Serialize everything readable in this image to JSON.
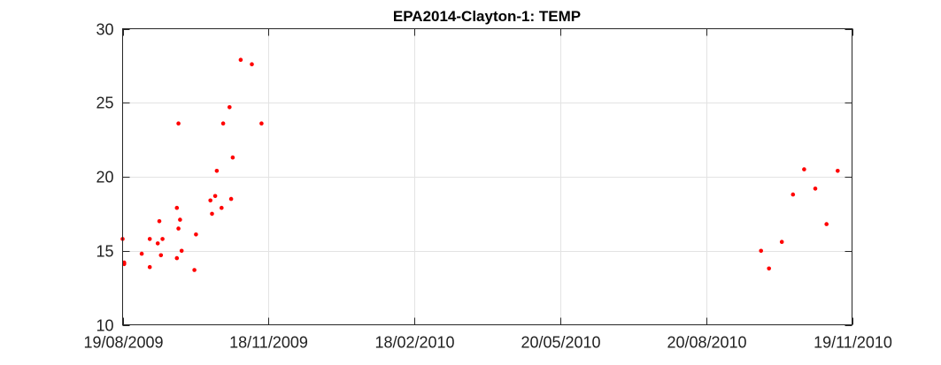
{
  "chart_data": {
    "type": "scatter",
    "title": "EPA2014-Clayton-1: TEMP",
    "xlabel": "",
    "ylabel": "",
    "x_axis_type": "date",
    "xlim": [
      "2009-08-19",
      "2010-11-19"
    ],
    "ylim": [
      10,
      30
    ],
    "x_ticks": [
      {
        "date": "2009-08-19",
        "label": "19/08/2009"
      },
      {
        "date": "2009-11-18",
        "label": "18/11/2009"
      },
      {
        "date": "2010-02-18",
        "label": "18/02/2010"
      },
      {
        "date": "2010-05-20",
        "label": "20/05/2010"
      },
      {
        "date": "2010-08-20",
        "label": "20/08/2010"
      },
      {
        "date": "2010-11-19",
        "label": "19/11/2010"
      }
    ],
    "y_ticks": [
      10,
      15,
      20,
      25,
      30
    ],
    "grid": true,
    "marker_color": "#ff0000",
    "series": [
      {
        "points": [
          {
            "x": "2009-08-19",
            "y": 15.8
          },
          {
            "x": "2009-08-20",
            "y": 14.2
          },
          {
            "x": "2009-08-20",
            "y": 14.1
          },
          {
            "x": "2009-08-31",
            "y": 14.8
          },
          {
            "x": "2009-09-05",
            "y": 15.8
          },
          {
            "x": "2009-09-05",
            "y": 13.9
          },
          {
            "x": "2009-09-10",
            "y": 15.5
          },
          {
            "x": "2009-09-11",
            "y": 17.0
          },
          {
            "x": "2009-09-12",
            "y": 14.7
          },
          {
            "x": "2009-09-13",
            "y": 15.8
          },
          {
            "x": "2009-09-22",
            "y": 17.9
          },
          {
            "x": "2009-09-22",
            "y": 14.5
          },
          {
            "x": "2009-09-23",
            "y": 23.6
          },
          {
            "x": "2009-09-23",
            "y": 16.5
          },
          {
            "x": "2009-09-24",
            "y": 17.1
          },
          {
            "x": "2009-09-25",
            "y": 15.0
          },
          {
            "x": "2009-10-03",
            "y": 13.7
          },
          {
            "x": "2009-10-04",
            "y": 16.1
          },
          {
            "x": "2009-10-13",
            "y": 18.4
          },
          {
            "x": "2009-10-14",
            "y": 17.5
          },
          {
            "x": "2009-10-16",
            "y": 18.7
          },
          {
            "x": "2009-10-17",
            "y": 20.4
          },
          {
            "x": "2009-10-20",
            "y": 17.9
          },
          {
            "x": "2009-10-21",
            "y": 23.6
          },
          {
            "x": "2009-10-25",
            "y": 24.7
          },
          {
            "x": "2009-10-26",
            "y": 18.5
          },
          {
            "x": "2009-10-27",
            "y": 21.3
          },
          {
            "x": "2009-11-01",
            "y": 27.9
          },
          {
            "x": "2009-11-08",
            "y": 27.6
          },
          {
            "x": "2009-11-14",
            "y": 23.6
          },
          {
            "x": "2010-09-23",
            "y": 15.0
          },
          {
            "x": "2010-09-28",
            "y": 13.8
          },
          {
            "x": "2010-10-06",
            "y": 15.6
          },
          {
            "x": "2010-10-13",
            "y": 18.8
          },
          {
            "x": "2010-10-20",
            "y": 20.5
          },
          {
            "x": "2010-10-27",
            "y": 19.2
          },
          {
            "x": "2010-11-03",
            "y": 16.8
          },
          {
            "x": "2010-11-10",
            "y": 20.4
          }
        ]
      }
    ]
  }
}
